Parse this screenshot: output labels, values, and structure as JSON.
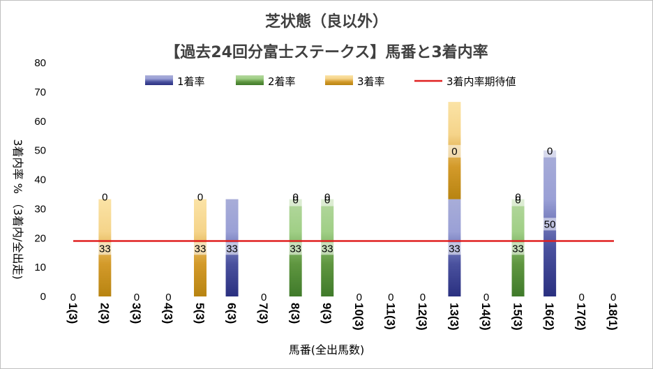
{
  "chart_data": {
    "type": "bar",
    "stacked": true,
    "title": "芝状態（良以外）",
    "subtitle": "【過去24回分富士ステークス】馬番と3着内率",
    "xlabel": "馬番(全出馬数)",
    "ylabel": "3着内率 % （3着内/全出走)",
    "ylim": [
      0,
      80
    ],
    "yticks": [
      "0",
      "10",
      "20",
      "30",
      "40",
      "50",
      "60",
      "70",
      "80"
    ],
    "grid": false,
    "legend_position": "top",
    "categories": [
      "1(3)",
      "2(3)",
      "3(3)",
      "4(3)",
      "5(3)",
      "6(3)",
      "7(3)",
      "8(3)",
      "9(3)",
      "10(3)",
      "11(3)",
      "12(3)",
      "13(3)",
      "14(3)",
      "15(3)",
      "16(2)",
      "17(2)",
      "18(1)"
    ],
    "series": [
      {
        "name": "1着率",
        "color": "#5a63b0",
        "values": [
          0,
          0,
          0,
          0,
          0,
          33.3,
          0,
          0,
          0,
          0,
          0,
          0,
          33.3,
          0,
          0,
          50,
          0,
          0
        ]
      },
      {
        "name": "2着率",
        "color": "#70ad47",
        "values": [
          0,
          0,
          0,
          0,
          0,
          0,
          0,
          33.3,
          33.3,
          0,
          0,
          0,
          0,
          0,
          33.3,
          0,
          0,
          0
        ]
      },
      {
        "name": "3着率",
        "color": "#e4b23a",
        "values": [
          0,
          33.3,
          0,
          0,
          33.3,
          0,
          0,
          0,
          0,
          0,
          0,
          0,
          33.3,
          0,
          0,
          0,
          0,
          0
        ]
      }
    ],
    "data_labels": [
      {
        "series": 0,
        "labels": [
          "0",
          "",
          "0",
          "0",
          "",
          "33",
          "0",
          "",
          "",
          "0",
          "0",
          "0",
          "33",
          "0",
          "",
          "50",
          "0",
          "0"
        ]
      },
      {
        "series": 1,
        "labels": [
          "",
          "",
          "",
          "",
          "",
          "",
          "",
          "33",
          "33",
          "",
          "",
          "",
          "",
          "",
          "33",
          "",
          "",
          ""
        ]
      },
      {
        "series": 2,
        "labels": [
          "",
          "33",
          "",
          "",
          "33",
          "",
          "",
          "0",
          "0",
          "",
          "",
          "",
          "0",
          "",
          "0",
          "0",
          "",
          ""
        ]
      }
    ],
    "top_labels": [
      "",
      "0",
      "",
      "",
      "0",
      "",
      "",
      "0",
      "0",
      "",
      "",
      "",
      "",
      "",
      "0",
      "",
      "",
      ""
    ],
    "reference_line": {
      "name": "3着内率期待値",
      "value": 19,
      "color": "#e02020"
    }
  }
}
